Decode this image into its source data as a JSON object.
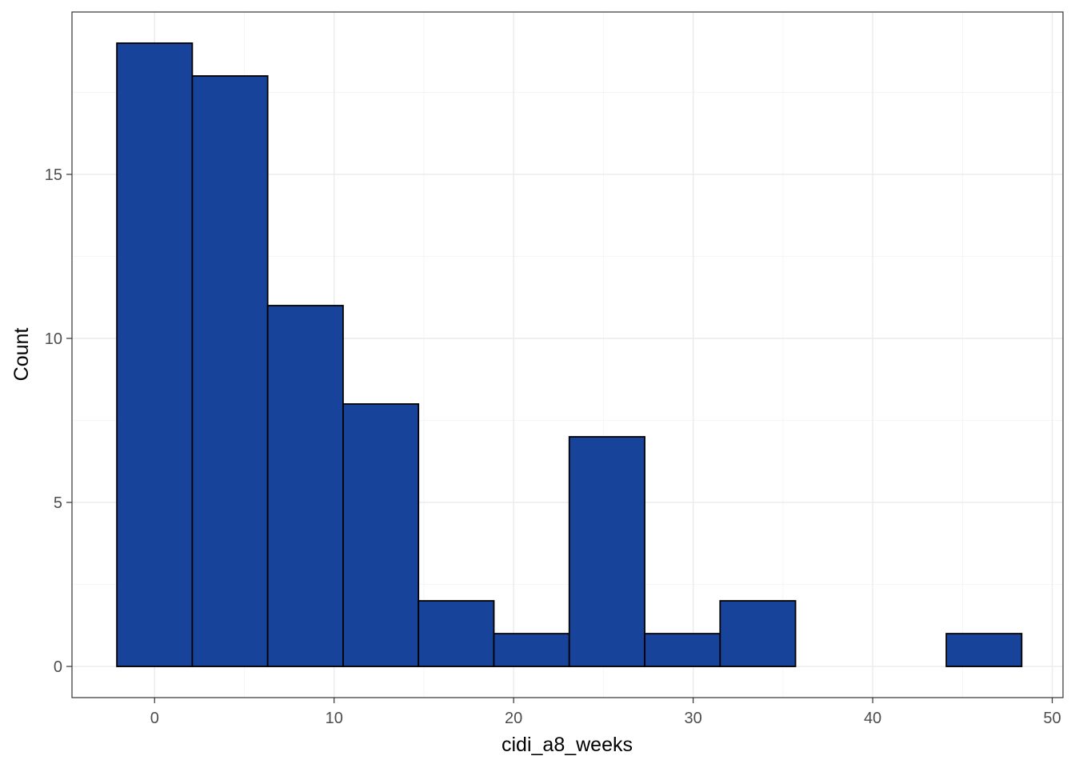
{
  "chart_data": {
    "type": "bar",
    "subtype": "histogram",
    "title": "",
    "xlabel": "cidi_a8_weeks",
    "ylabel": "Count",
    "bin_edges": [
      -2.1,
      2.1,
      6.3,
      10.5,
      14.7,
      18.9,
      23.1,
      27.3,
      31.5,
      35.7,
      39.9,
      44.1,
      48.3
    ],
    "counts": [
      19,
      18,
      11,
      8,
      2,
      1,
      7,
      1,
      2,
      0,
      0,
      1
    ],
    "xlim": [
      -4.6,
      50.6
    ],
    "ylim": [
      -0.95,
      19.95
    ],
    "x_ticks": [
      0,
      10,
      20,
      30,
      40,
      50
    ],
    "x_tick_labels": [
      "0",
      "10",
      "20",
      "30",
      "40",
      "50"
    ],
    "x_minor_ticks": [
      5,
      15,
      25,
      35,
      45
    ],
    "y_ticks": [
      0,
      5,
      10,
      15
    ],
    "y_tick_labels": [
      "0",
      "5",
      "10",
      "15"
    ],
    "y_minor_ticks": [
      2.5,
      7.5,
      12.5,
      17.5
    ],
    "grid": true,
    "legend": "none",
    "colors": {
      "fill": "#17439a",
      "outline": "#000000"
    }
  }
}
